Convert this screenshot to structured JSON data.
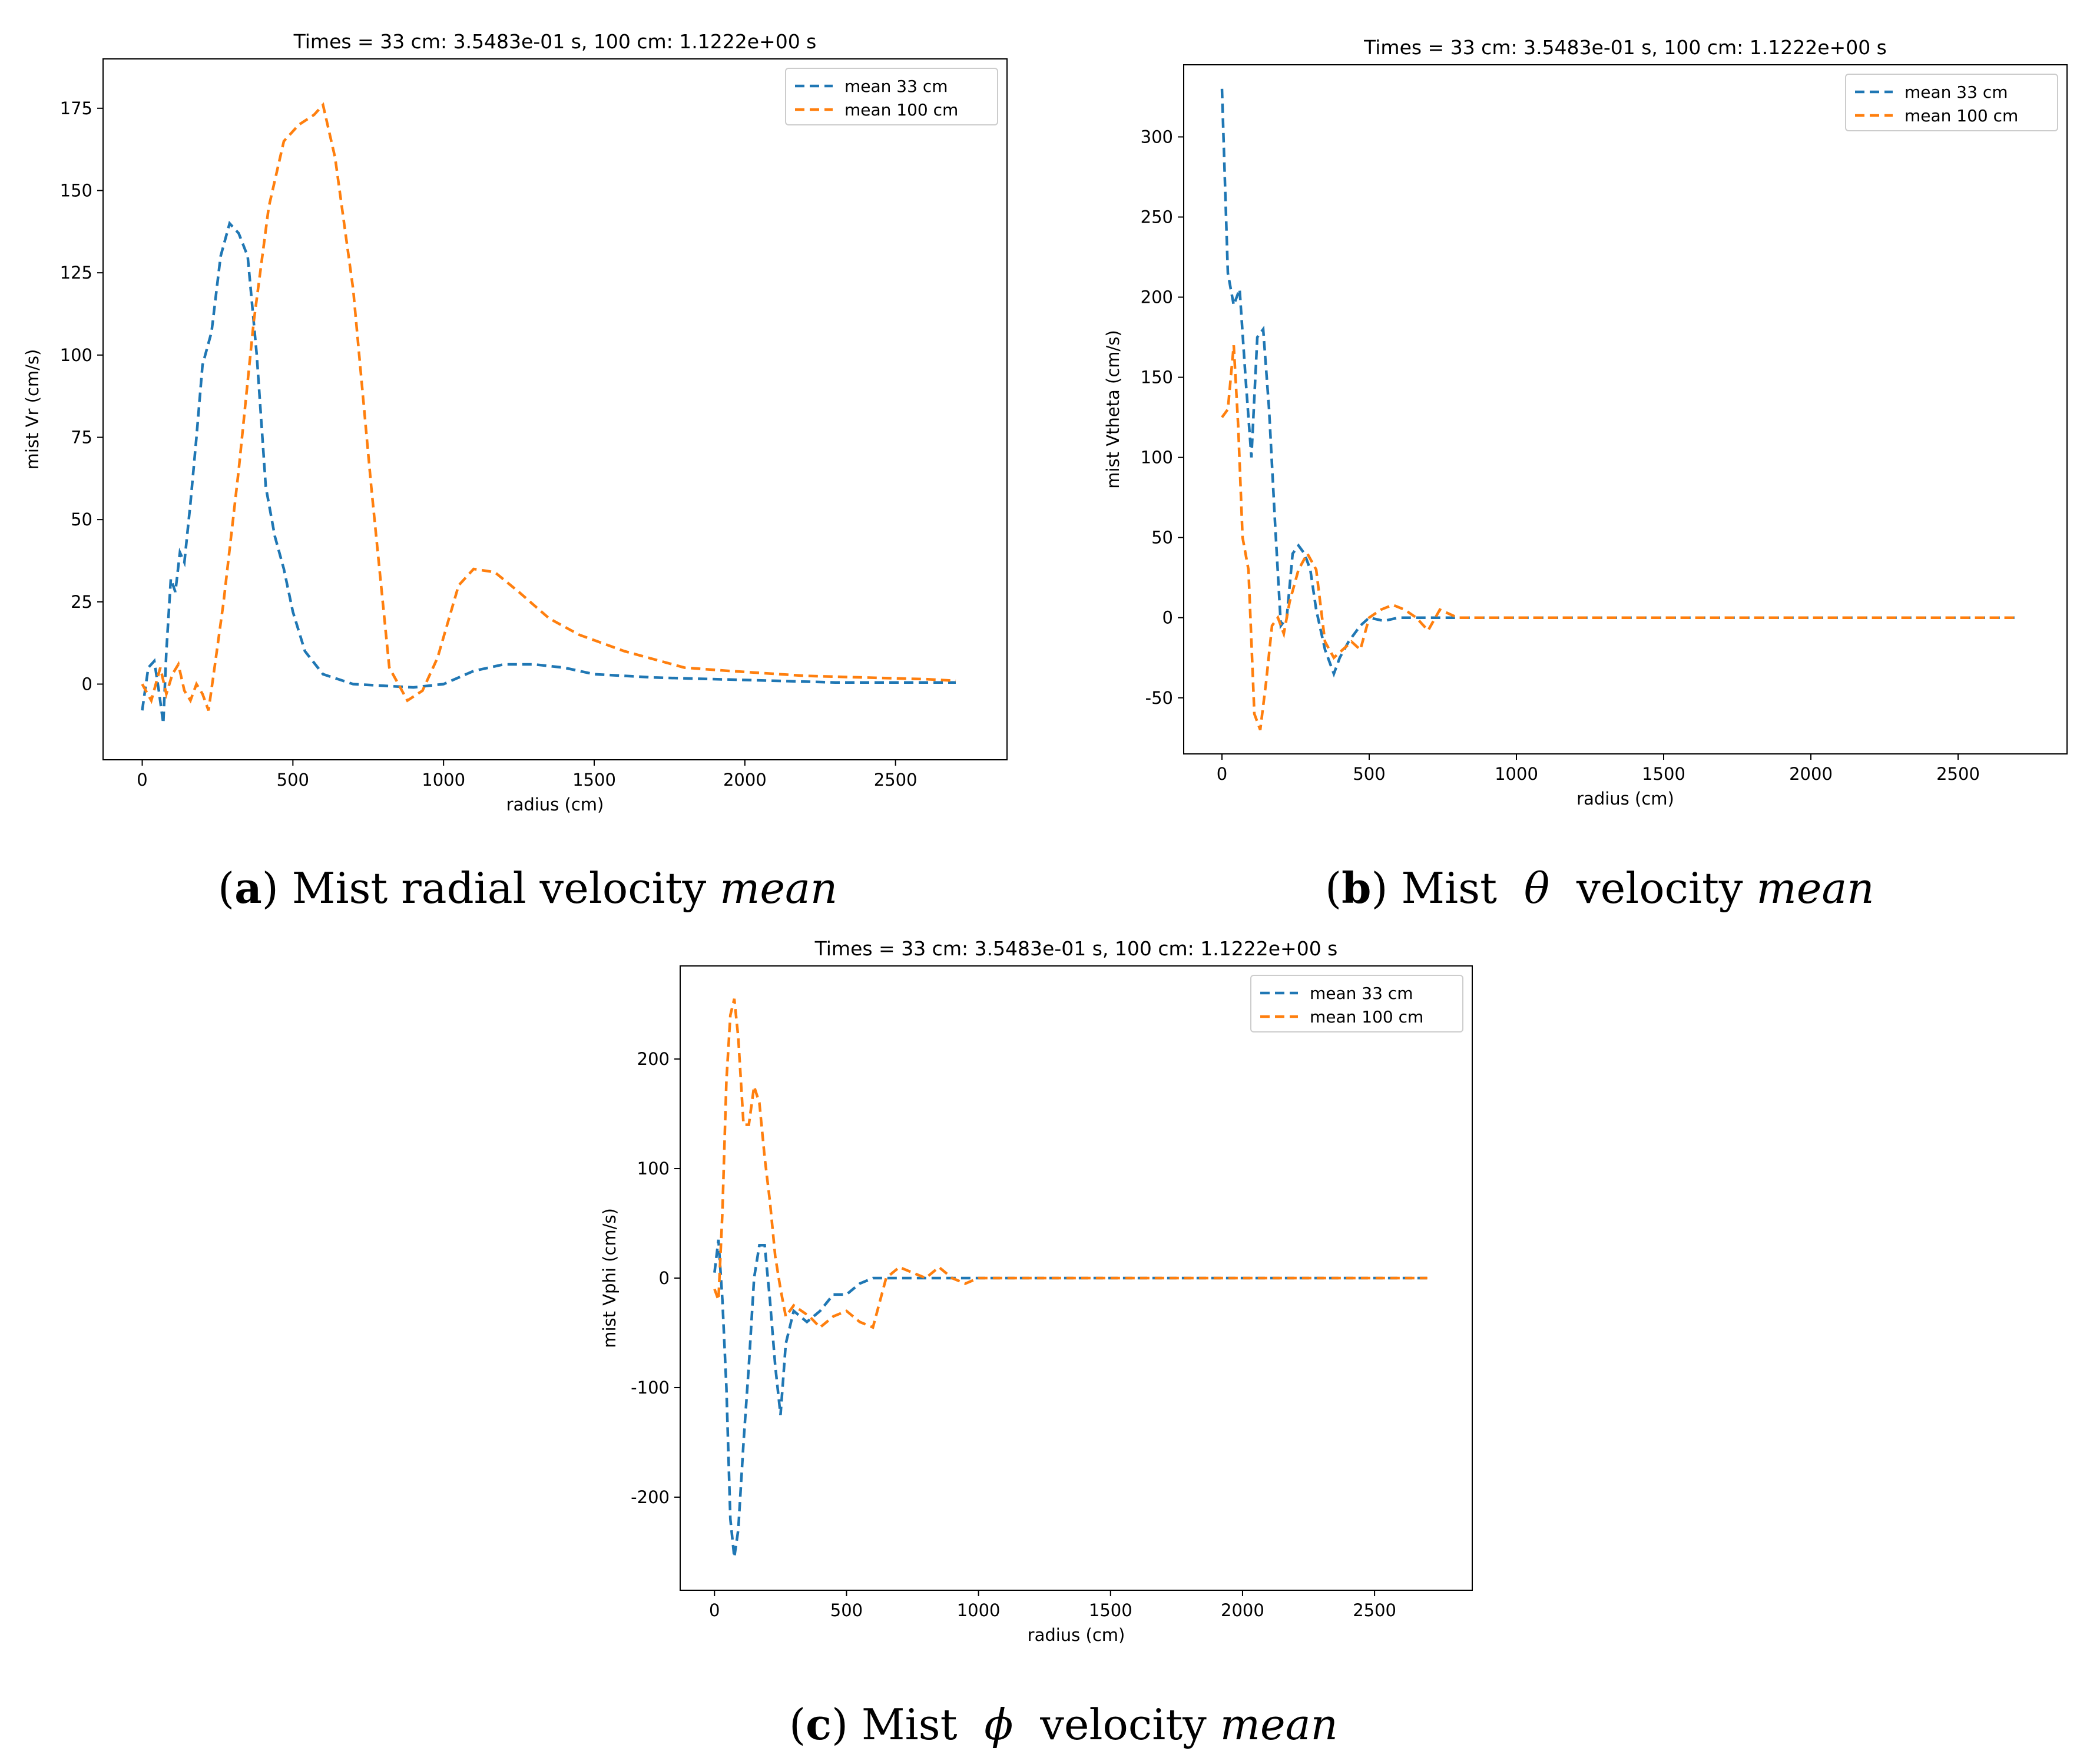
{
  "charts": [
    {
      "caption": {
        "letter": "a",
        "text": "Mist radial velocity",
        "symbol": "",
        "suffix": "mean"
      },
      "chart_data": {
        "type": "line",
        "title": "Times = 33 cm:   3.5483e-01 s,   100 cm:   1.1222e+00 s",
        "xlabel": "radius (cm)",
        "ylabel": "mist Vr (cm/s)",
        "xlim": [
          -130,
          2870
        ],
        "ylim": [
          -23,
          190
        ],
        "xticks": [
          0,
          500,
          1000,
          1500,
          2000,
          2500
        ],
        "yticks": [
          0,
          25,
          50,
          75,
          100,
          125,
          150,
          175
        ],
        "legend_position": "top-right",
        "series": [
          {
            "name": "mean 33 cm",
            "color": "#1f77b4",
            "x": [
              0,
              20,
              40,
              55,
              70,
              80,
              95,
              110,
              125,
              140,
              160,
              180,
              200,
              230,
              260,
              290,
              320,
              350,
              380,
              410,
              440,
              470,
              500,
              540,
              600,
              700,
              800,
              900,
              1000,
              1100,
              1200,
              1300,
              1400,
              1500,
              1700,
              1900,
              2100,
              2300,
              2500,
              2700
            ],
            "y": [
              -8,
              5,
              7,
              -2,
              -12,
              10,
              32,
              28,
              40,
              37,
              55,
              75,
              97,
              107,
              130,
              140,
              137,
              130,
              100,
              60,
              45,
              35,
              22,
              10,
              3,
              0,
              -0.5,
              -1,
              0,
              4,
              6,
              6,
              5,
              3,
              2,
              1.5,
              1,
              0.5,
              0.5,
              0.5
            ]
          },
          {
            "name": "mean 100 cm",
            "color": "#ff7f0e",
            "x": [
              0,
              30,
              60,
              80,
              100,
              120,
              140,
              160,
              180,
              200,
              220,
              240,
              270,
              320,
              370,
              420,
              470,
              520,
              570,
              600,
              640,
              700,
              760,
              820,
              880,
              930,
              980,
              1050,
              1100,
              1170,
              1250,
              1350,
              1450,
              1600,
              1800,
              1950,
              2200,
              2400,
              2600,
              2700
            ],
            "y": [
              0,
              -5,
              5,
              -3,
              3,
              6,
              -2,
              -5,
              0,
              -3,
              -8,
              5,
              25,
              65,
              110,
              145,
              165,
              170,
              173,
              176,
              160,
              120,
              60,
              5,
              -5,
              -2,
              8,
              30,
              35,
              34,
              28,
              20,
              15,
              10,
              5,
              4,
              2.5,
              2,
              1.5,
              1
            ]
          }
        ]
      }
    },
    {
      "caption": {
        "letter": "b",
        "text": "Mist",
        "symbol": "θ",
        "suffix": "velocity",
        "tail": "mean"
      },
      "chart_data": {
        "type": "line",
        "title": "Times = 33 cm:   3.5483e-01 s,   100 cm:   1.1222e+00 s",
        "xlabel": "radius (cm)",
        "ylabel": "mist Vtheta (cm/s)",
        "xlim": [
          -130,
          2870
        ],
        "ylim": [
          -85,
          345
        ],
        "xticks": [
          0,
          500,
          1000,
          1500,
          2000,
          2500
        ],
        "yticks": [
          -50,
          0,
          50,
          100,
          150,
          200,
          250,
          300
        ],
        "legend_position": "top-right",
        "series": [
          {
            "name": "mean 33 cm",
            "color": "#1f77b4",
            "x": [
              0,
              20,
              40,
              60,
              80,
              100,
              120,
              140,
              160,
              180,
              200,
              220,
              240,
              260,
              280,
              300,
              320,
              350,
              380,
              400,
              430,
              470,
              500,
              550,
              600,
              700,
              800,
              900,
              1000,
              1200,
              1400,
              1600,
              1800,
              2000,
              2200,
              2400,
              2600,
              2700
            ],
            "y": [
              330,
              215,
              195,
              205,
              150,
              100,
              175,
              180,
              130,
              60,
              -5,
              0,
              40,
              45,
              40,
              30,
              5,
              -20,
              -35,
              -25,
              -15,
              -5,
              0,
              -2,
              0,
              0,
              0,
              0,
              0,
              0,
              0,
              0,
              0,
              0,
              0,
              0,
              0,
              0
            ]
          },
          {
            "name": "mean 100 cm",
            "color": "#ff7f0e",
            "x": [
              0,
              20,
              40,
              55,
              70,
              90,
              110,
              130,
              150,
              170,
              190,
              210,
              230,
              260,
              290,
              320,
              350,
              380,
              410,
              440,
              470,
              500,
              540,
              580,
              620,
              660,
              700,
              740,
              800,
              900,
              1000,
              1200,
              1400,
              1600,
              1800,
              2000,
              2200,
              2400,
              2600,
              2700
            ],
            "y": [
              125,
              130,
              170,
              120,
              50,
              30,
              -60,
              -70,
              -40,
              -5,
              0,
              -10,
              10,
              30,
              40,
              30,
              -15,
              -25,
              -20,
              -15,
              -20,
              0,
              5,
              8,
              5,
              0,
              -8,
              5,
              0,
              0,
              0,
              0,
              0,
              0,
              0,
              0,
              0,
              0,
              0,
              0
            ]
          }
        ]
      }
    },
    {
      "caption": {
        "letter": "c",
        "text": "Mist",
        "symbol": "ϕ",
        "suffix": "velocity",
        "tail": "mean"
      },
      "chart_data": {
        "type": "line",
        "title": "Times = 33 cm:   3.5483e-01 s,   100 cm:   1.1222e+00 s",
        "xlabel": "radius (cm)",
        "ylabel": "mist Vphi (cm/s)",
        "xlim": [
          -130,
          2870
        ],
        "ylim": [
          -285,
          285
        ],
        "xticks": [
          0,
          500,
          1000,
          1500,
          2000,
          2500
        ],
        "yticks": [
          -200,
          -100,
          0,
          100,
          200
        ],
        "legend_position": "top-right",
        "series": [
          {
            "name": "mean 33 cm",
            "color": "#1f77b4",
            "x": [
              0,
              15,
              30,
              45,
              60,
              75,
              90,
              110,
              130,
              150,
              170,
              190,
              210,
              230,
              250,
              270,
              300,
              350,
              400,
              450,
              500,
              550,
              600,
              700,
              800,
              900,
              1000,
              1200,
              1400,
              1600,
              1800,
              2000,
              2200,
              2400,
              2600,
              2700
            ],
            "y": [
              5,
              35,
              -20,
              -100,
              -220,
              -255,
              -230,
              -150,
              -80,
              0,
              30,
              30,
              -20,
              -80,
              -125,
              -60,
              -30,
              -40,
              -30,
              -15,
              -15,
              -5,
              0,
              0,
              0,
              0,
              0,
              0,
              0,
              0,
              0,
              0,
              0,
              0,
              0,
              0
            ]
          },
          {
            "name": "mean 100 cm",
            "color": "#ff7f0e",
            "x": [
              0,
              15,
              30,
              45,
              60,
              75,
              90,
              110,
              130,
              150,
              170,
              190,
              210,
              230,
              250,
              270,
              300,
              330,
              360,
              400,
              450,
              500,
              550,
              600,
              650,
              700,
              750,
              800,
              850,
              900,
              950,
              1000,
              1200,
              1400,
              1600,
              1800,
              2000,
              2200,
              2400,
              2600,
              2700
            ],
            "y": [
              -10,
              -20,
              60,
              180,
              240,
              255,
              220,
              140,
              140,
              175,
              160,
              110,
              70,
              20,
              -10,
              -35,
              -25,
              -30,
              -35,
              -45,
              -35,
              -30,
              -40,
              -45,
              0,
              10,
              5,
              0,
              10,
              0,
              -5,
              0,
              0,
              0,
              0,
              0,
              0,
              0,
              0,
              0,
              0
            ]
          }
        ]
      }
    }
  ]
}
